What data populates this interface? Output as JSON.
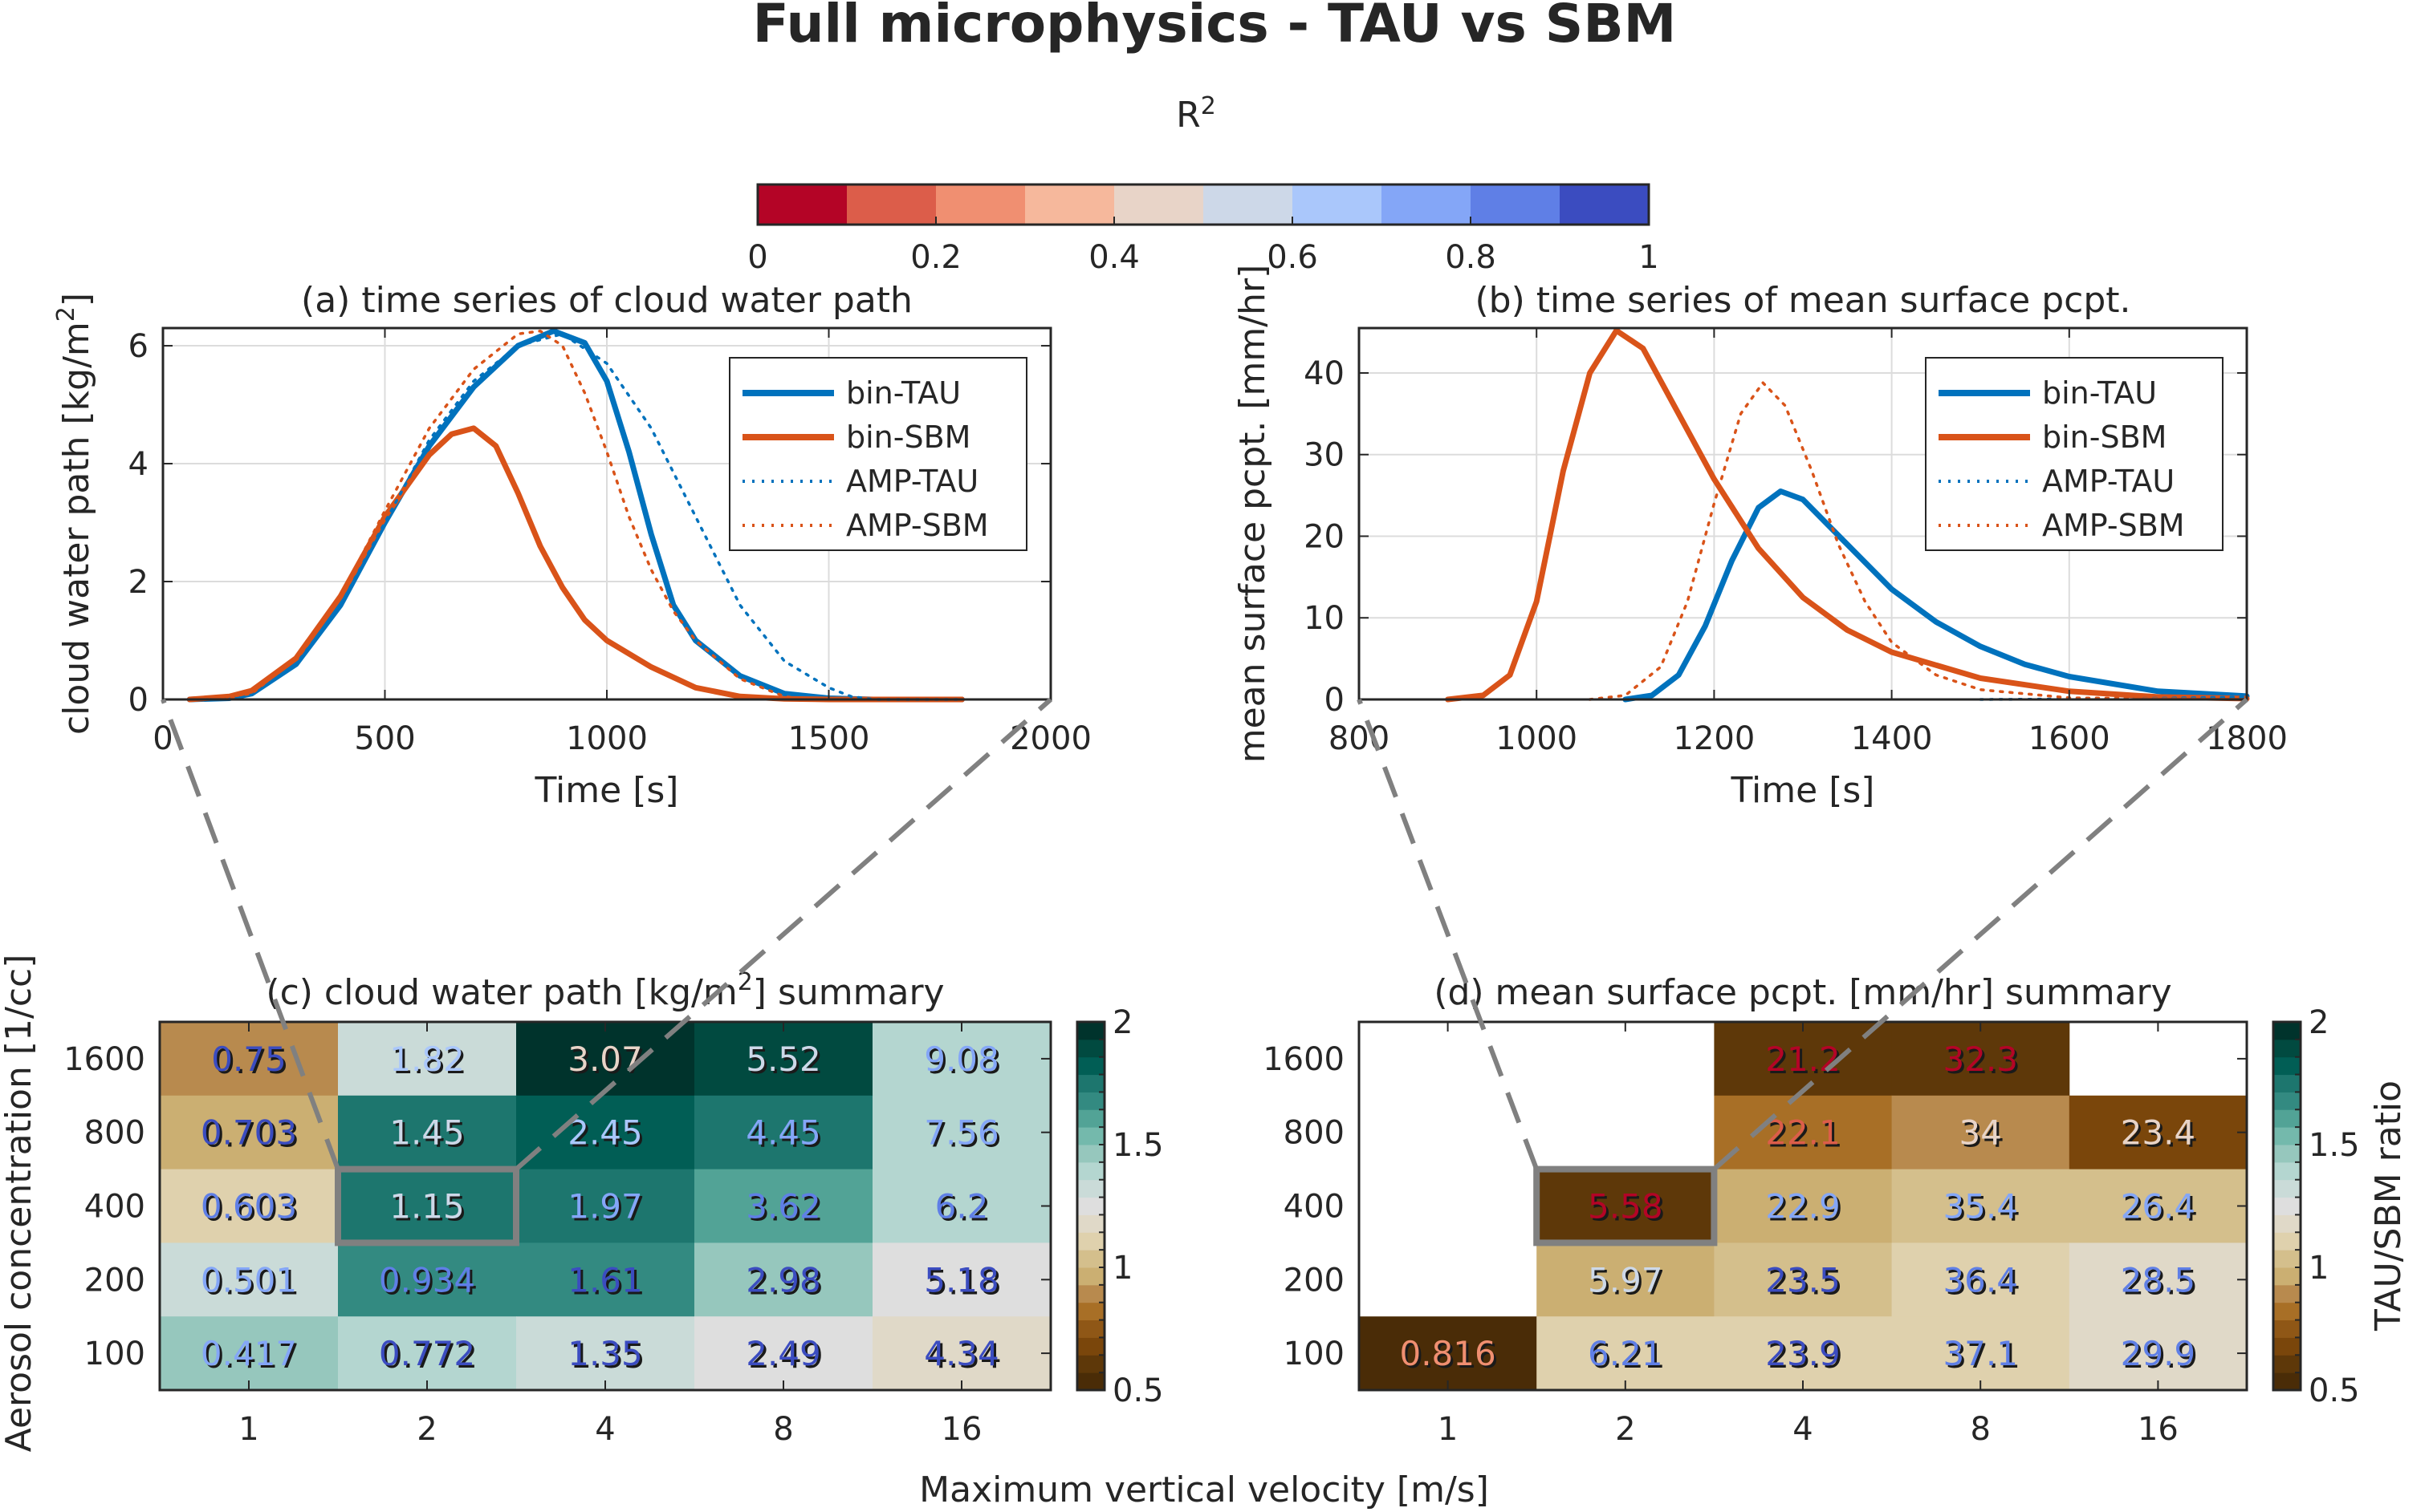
{
  "figure": {
    "title": "Full microphysics - TAU vs SBM",
    "shared_xlabel": "Maximum vertical velocity [m/s]",
    "shared_ylabel": "Aerosol concentration [1/cc]"
  },
  "r2_colorbar": {
    "label": "R",
    "label_sup": "2",
    "ticks": [
      "0",
      "0.2",
      "0.4",
      "0.6",
      "0.8",
      "1"
    ],
    "range": [
      0,
      1
    ],
    "colors": [
      "#b40426",
      "#dc5d4a",
      "#f08f71",
      "#f6b89c",
      "#e8d4c8",
      "#cdd8e8",
      "#aac7fb",
      "#84a6f7",
      "#5f7fe6",
      "#3b4cc0"
    ]
  },
  "ratio_colorbar": {
    "label": "TAU/SBM ratio",
    "ticks": [
      "0.5",
      "1",
      "1.5",
      "2"
    ],
    "tick_values": [
      0.5,
      1,
      1.5,
      2
    ],
    "range": [
      0.5,
      2
    ],
    "colors": [
      "#4a2c07",
      "#5e3809",
      "#7a460b",
      "#8f5716",
      "#a86f26",
      "#b88a4e",
      "#cbaf72",
      "#d4bf8c",
      "#dfd1ad",
      "#e0d9c8",
      "#dedede",
      "#cadbd8",
      "#b4d6d0",
      "#96c7bd",
      "#74b9ac",
      "#52a396",
      "#338a81",
      "#1d766e",
      "#015e55",
      "#014a40",
      "#00332c"
    ]
  },
  "chart_data": [
    {
      "id": "a",
      "type": "line",
      "title": "(a) time series of cloud water path",
      "xlabel": "Time [s]",
      "ylabel": "cloud water path [kg/m",
      "ylabel_sup": "2",
      "ylabel_end": "]",
      "xlim": [
        0,
        2000
      ],
      "ylim": [
        0,
        6.3
      ],
      "xticks": [
        0,
        500,
        1000,
        1500,
        2000
      ],
      "xtick_labels": [
        "0",
        "500",
        "1000",
        "1500",
        "2000"
      ],
      "yticks": [
        0,
        2,
        4,
        6
      ],
      "ytick_labels": [
        "0",
        "2",
        "4",
        "6"
      ],
      "grid": true,
      "legend": "top-right",
      "series": [
        {
          "name": "bin-TAU",
          "color": "#0072bd",
          "style": "solid",
          "x": [
            60,
            150,
            200,
            300,
            400,
            500,
            600,
            700,
            800,
            880,
            950,
            1000,
            1050,
            1100,
            1150,
            1200,
            1300,
            1400,
            1500,
            1600,
            1800
          ],
          "y": [
            0,
            0.02,
            0.1,
            0.6,
            1.6,
            3.0,
            4.3,
            5.3,
            6.0,
            6.25,
            6.05,
            5.4,
            4.2,
            2.8,
            1.6,
            1.0,
            0.4,
            0.1,
            0.02,
            0,
            0
          ]
        },
        {
          "name": "bin-SBM",
          "color": "#d95319",
          "style": "solid",
          "x": [
            60,
            150,
            200,
            300,
            400,
            500,
            600,
            650,
            700,
            750,
            800,
            850,
            900,
            950,
            1000,
            1100,
            1200,
            1300,
            1400,
            1500,
            1800
          ],
          "y": [
            0,
            0.05,
            0.15,
            0.7,
            1.75,
            3.1,
            4.15,
            4.5,
            4.6,
            4.3,
            3.5,
            2.6,
            1.9,
            1.35,
            1.0,
            0.55,
            0.2,
            0.05,
            0.01,
            0,
            0
          ]
        },
        {
          "name": "AMP-TAU",
          "color": "#0072bd",
          "style": "dotted",
          "x": [
            100,
            200,
            300,
            400,
            500,
            600,
            700,
            800,
            900,
            1000,
            1100,
            1200,
            1300,
            1400,
            1500,
            1550,
            1600,
            1800
          ],
          "y": [
            0,
            0.08,
            0.6,
            1.6,
            3.0,
            4.4,
            5.4,
            6.0,
            6.2,
            5.7,
            4.6,
            3.1,
            1.6,
            0.65,
            0.2,
            0.05,
            0,
            0
          ]
        },
        {
          "name": "AMP-SBM",
          "color": "#d95319",
          "style": "dotted",
          "x": [
            100,
            200,
            300,
            400,
            500,
            600,
            700,
            800,
            850,
            900,
            950,
            1000,
            1050,
            1100,
            1150,
            1200,
            1300,
            1400,
            1450,
            1800
          ],
          "y": [
            0,
            0.1,
            0.7,
            1.75,
            3.2,
            4.6,
            5.6,
            6.2,
            6.25,
            6.0,
            5.2,
            4.2,
            3.1,
            2.2,
            1.5,
            1.0,
            0.35,
            0.05,
            0,
            0
          ]
        }
      ]
    },
    {
      "id": "b",
      "type": "line",
      "title": "(b) time series of mean surface pcpt.",
      "xlabel": "Time [s]",
      "ylabel": "mean surface pcpt. [mm/hr]",
      "xlim": [
        800,
        1800
      ],
      "ylim": [
        0,
        45.5
      ],
      "xticks": [
        800,
        1000,
        1200,
        1400,
        1600,
        1800
      ],
      "xtick_labels": [
        "800",
        "1000",
        "1200",
        "1400",
        "1600",
        "1800"
      ],
      "yticks": [
        0,
        10,
        20,
        30,
        40
      ],
      "ytick_labels": [
        "0",
        "10",
        "20",
        "30",
        "40"
      ],
      "grid": true,
      "legend": "top-right",
      "series": [
        {
          "name": "bin-TAU",
          "color": "#0072bd",
          "style": "solid",
          "x": [
            1100,
            1130,
            1160,
            1190,
            1220,
            1250,
            1275,
            1300,
            1350,
            1400,
            1450,
            1500,
            1550,
            1600,
            1700,
            1800
          ],
          "y": [
            0,
            0.5,
            3,
            9,
            17,
            23.5,
            25.5,
            24.5,
            19,
            13.5,
            9.5,
            6.5,
            4.3,
            2.8,
            1.0,
            0.4
          ]
        },
        {
          "name": "bin-SBM",
          "color": "#d95319",
          "style": "solid",
          "x": [
            900,
            940,
            970,
            1000,
            1030,
            1060,
            1090,
            1120,
            1150,
            1200,
            1250,
            1300,
            1350,
            1400,
            1500,
            1600,
            1700,
            1800
          ],
          "y": [
            0,
            0.5,
            3,
            12,
            28,
            40,
            45.2,
            43,
            37,
            27,
            18.5,
            12.5,
            8.5,
            5.8,
            2.6,
            1.0,
            0.3,
            0.1
          ]
        },
        {
          "name": "AMP-TAU",
          "color": "#0072bd",
          "style": "dotted",
          "x": [
            1500,
            1600,
            1700,
            1800
          ],
          "y": [
            0,
            0.05,
            0.15,
            0.3
          ]
        },
        {
          "name": "AMP-SBM",
          "color": "#d95319",
          "style": "dotted",
          "x": [
            1060,
            1100,
            1140,
            1170,
            1200,
            1230,
            1255,
            1280,
            1310,
            1340,
            1370,
            1400,
            1450,
            1500,
            1600,
            1800
          ],
          "y": [
            0,
            0.5,
            4,
            12,
            24,
            35,
            38.8,
            36,
            28,
            19,
            12,
            7,
            3,
            1.2,
            0.2,
            0
          ]
        }
      ]
    },
    {
      "id": "c",
      "type": "heatmap",
      "title": "(c) cloud water path [kg/m",
      "title_sup": "2",
      "title_end": "] summary",
      "x_categories": [
        "1",
        "2",
        "4",
        "8",
        "16"
      ],
      "y_categories": [
        "1600",
        "800",
        "400",
        "200",
        "100"
      ],
      "color_metric": "TAU/SBM ratio",
      "text_color_metric": "R2",
      "highlight": {
        "row": 2,
        "col": 1
      },
      "values": [
        [
          "0.75",
          "1.82",
          "3.07",
          "5.52",
          "9.08"
        ],
        [
          "0.703",
          "1.45",
          "2.45",
          "4.45",
          "7.56"
        ],
        [
          "0.603",
          "1.15",
          "1.97",
          "3.62",
          "6.2"
        ],
        [
          "0.501",
          "0.934",
          "1.61",
          "2.98",
          "5.18"
        ],
        [
          "0.417",
          "0.772",
          "1.35",
          "2.49",
          "4.34"
        ]
      ],
      "ratio": [
        [
          0.88,
          1.32,
          1.98,
          1.88,
          1.42
        ],
        [
          0.95,
          1.75,
          1.85,
          1.75,
          1.42
        ],
        [
          1.08,
          1.75,
          1.75,
          1.58,
          1.42
        ],
        [
          1.32,
          1.65,
          1.65,
          1.45,
          1.25
        ],
        [
          1.45,
          1.42,
          1.32,
          1.25,
          1.15
        ]
      ],
      "r2": [
        [
          0.95,
          0.65,
          0.45,
          0.55,
          0.75
        ],
        [
          0.95,
          0.55,
          0.65,
          0.75,
          0.75
        ],
        [
          0.85,
          0.55,
          0.75,
          0.85,
          0.85
        ],
        [
          0.75,
          0.85,
          0.95,
          0.95,
          0.95
        ],
        [
          0.75,
          0.95,
          0.95,
          0.95,
          0.95
        ]
      ]
    },
    {
      "id": "d",
      "type": "heatmap",
      "title": "(d) mean surface pcpt. [mm/hr] summary",
      "x_categories": [
        "1",
        "2",
        "4",
        "8",
        "16"
      ],
      "y_categories": [
        "1600",
        "800",
        "400",
        "200",
        "100"
      ],
      "color_metric": "TAU/SBM ratio",
      "text_color_metric": "R2",
      "highlight": {
        "row": 2,
        "col": 1
      },
      "values": [
        [
          null,
          null,
          "21.2",
          "32.3",
          null
        ],
        [
          null,
          null,
          "22.1",
          "34",
          "23.4"
        ],
        [
          null,
          "5.58",
          "22.9",
          "35.4",
          "26.4"
        ],
        [
          null,
          "5.97",
          "23.5",
          "36.4",
          "28.5"
        ],
        [
          "0.816",
          "6.21",
          "23.9",
          "37.1",
          "29.9"
        ]
      ],
      "ratio": [
        [
          null,
          null,
          0.62,
          0.62,
          null
        ],
        [
          null,
          null,
          0.85,
          0.92,
          0.68
        ],
        [
          null,
          0.62,
          0.95,
          1.0,
          1.0
        ],
        [
          null,
          0.95,
          1.0,
          1.08,
          1.15
        ],
        [
          0.52,
          1.08,
          1.08,
          1.08,
          1.15
        ]
      ],
      "r2": [
        [
          null,
          null,
          0.05,
          0.05,
          null
        ],
        [
          null,
          null,
          0.15,
          0.45,
          0.45
        ],
        [
          null,
          0.05,
          0.75,
          0.75,
          0.75
        ],
        [
          null,
          0.55,
          0.95,
          0.85,
          0.85
        ],
        [
          0.25,
          0.85,
          0.95,
          0.85,
          0.85
        ]
      ]
    }
  ]
}
